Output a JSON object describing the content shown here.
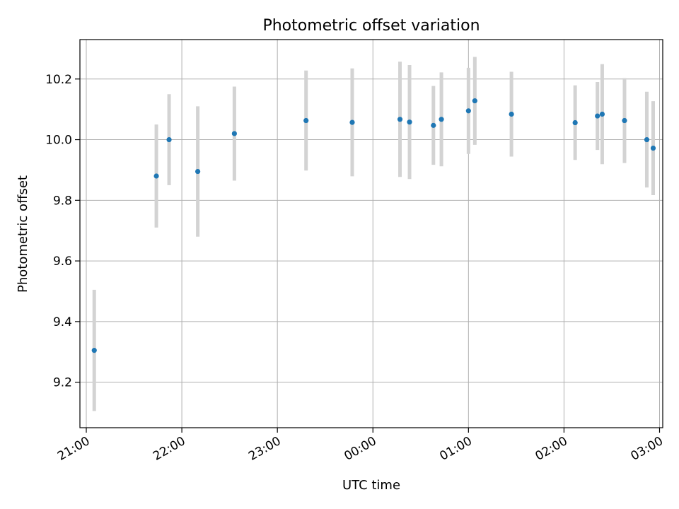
{
  "chart_data": {
    "type": "scatter",
    "title": "Photometric offset variation",
    "xlabel": "UTC time",
    "ylabel": "Photometric offset",
    "x_tick_labels": [
      "21:00",
      "22:00",
      "23:00",
      "00:00",
      "01:00",
      "02:00",
      "03:00"
    ],
    "y_ticks": [
      9.2,
      9.4,
      9.6,
      9.8,
      10.0,
      10.2
    ],
    "y_tick_labels": [
      "9.2",
      "9.4",
      "9.6",
      "9.8",
      "10.0",
      "10.2"
    ],
    "xlim": [
      "20:56",
      "03:02"
    ],
    "ylim": [
      9.05,
      10.33
    ],
    "grid": true,
    "legend": "none",
    "point_color": "#1f77b4",
    "errorbar_color": "#d3d3d3",
    "points": [
      {
        "x": "21:05",
        "y": 9.305,
        "err": 0.2
      },
      {
        "x": "21:44",
        "y": 9.88,
        "err": 0.17
      },
      {
        "x": "21:52",
        "y": 10.0,
        "err": 0.15
      },
      {
        "x": "22:10",
        "y": 9.895,
        "err": 0.215
      },
      {
        "x": "22:33",
        "y": 10.02,
        "err": 0.155
      },
      {
        "x": "23:18",
        "y": 10.063,
        "err": 0.165
      },
      {
        "x": "23:47",
        "y": 10.057,
        "err": 0.178
      },
      {
        "x": "00:17",
        "y": 10.067,
        "err": 0.19
      },
      {
        "x": "00:23",
        "y": 10.058,
        "err": 0.188
      },
      {
        "x": "00:38",
        "y": 10.047,
        "err": 0.13
      },
      {
        "x": "00:43",
        "y": 10.067,
        "err": 0.155
      },
      {
        "x": "01:00",
        "y": 10.095,
        "err": 0.142
      },
      {
        "x": "01:04",
        "y": 10.128,
        "err": 0.145
      },
      {
        "x": "01:27",
        "y": 10.084,
        "err": 0.14
      },
      {
        "x": "02:07",
        "y": 10.056,
        "err": 0.123
      },
      {
        "x": "02:21",
        "y": 10.078,
        "err": 0.112
      },
      {
        "x": "02:24",
        "y": 10.084,
        "err": 0.165
      },
      {
        "x": "02:38",
        "y": 10.063,
        "err": 0.14
      },
      {
        "x": "02:52",
        "y": 10.0,
        "err": 0.158
      },
      {
        "x": "02:56",
        "y": 9.972,
        "err": 0.155
      }
    ]
  }
}
